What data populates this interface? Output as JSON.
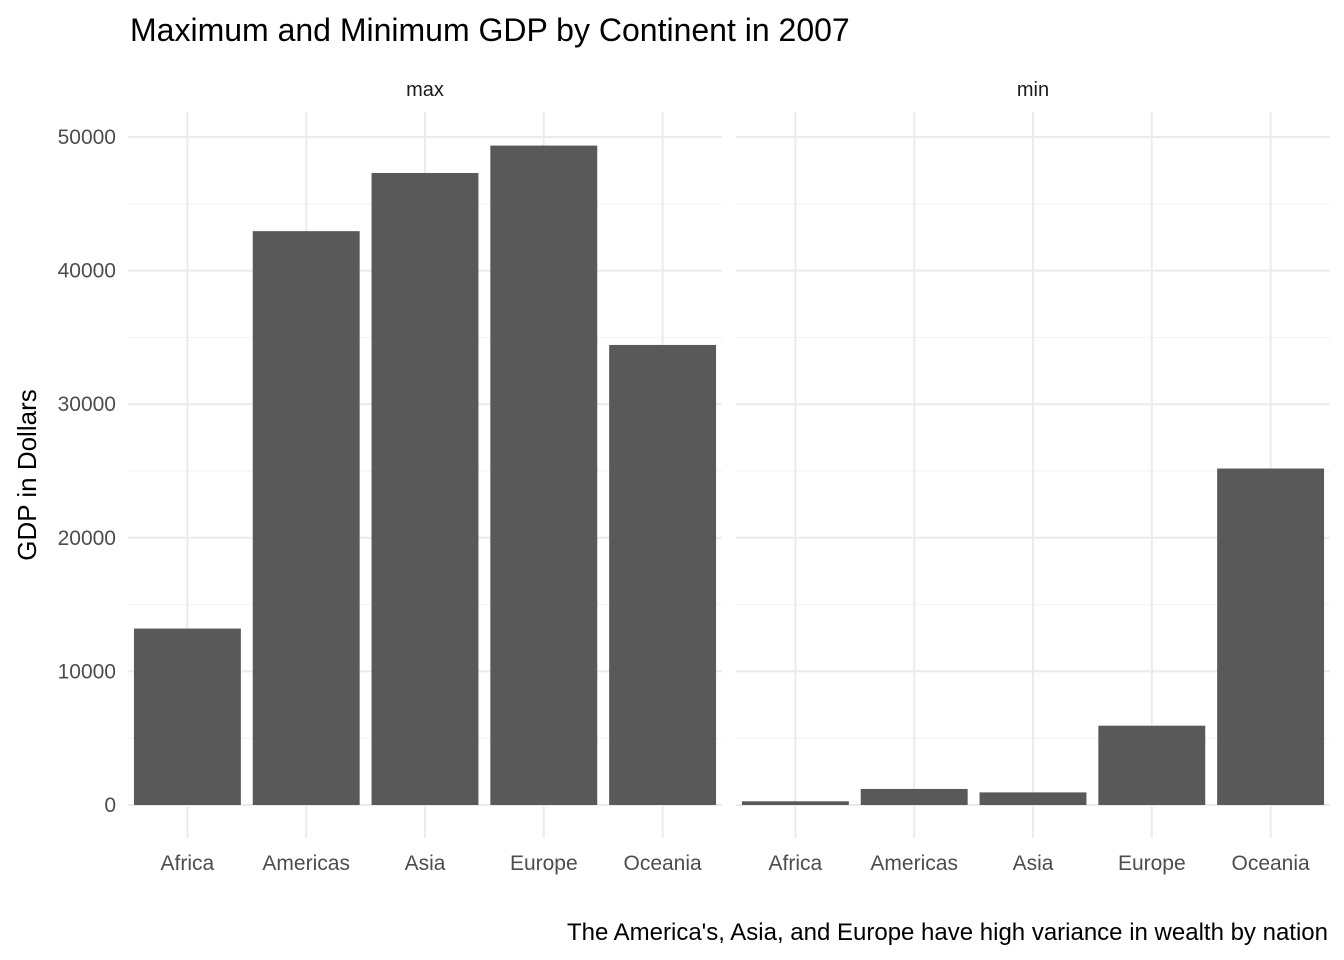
{
  "chart_data": {
    "type": "bar",
    "title": "Maximum and Minimum  GDP by Continent in 2007",
    "ylabel": "GDP in Dollars",
    "xlabel": "",
    "caption": "The America's, Asia, and Europe have high variance in wealth by nation",
    "ylim": [
      0,
      50000
    ],
    "yticks": [
      0,
      10000,
      20000,
      30000,
      40000,
      50000
    ],
    "grid": true,
    "facets": [
      {
        "strip": "max",
        "categories": [
          "Africa",
          "Americas",
          "Asia",
          "Europe",
          "Oceania"
        ],
        "values": [
          13206,
          42952,
          47307,
          49357,
          34435
        ]
      },
      {
        "strip": "min",
        "categories": [
          "Africa",
          "Americas",
          "Asia",
          "Europe",
          "Oceania"
        ],
        "values": [
          278,
          1202,
          944,
          5937,
          25185
        ]
      }
    ],
    "bar_color": "#595959"
  }
}
